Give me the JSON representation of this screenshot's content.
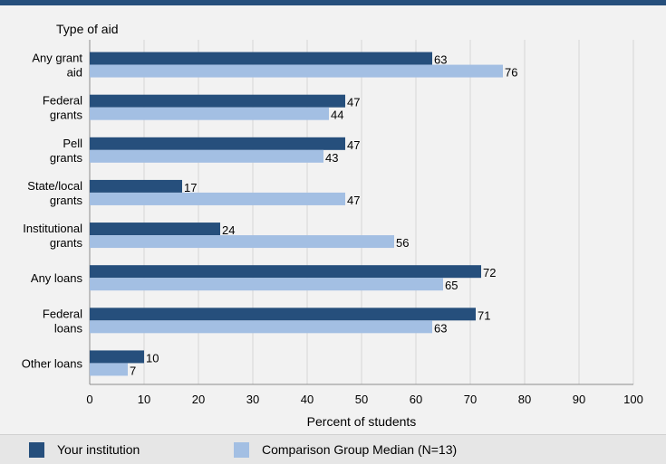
{
  "chart_data": {
    "type": "bar",
    "orientation": "horizontal",
    "yaxis_title": "Type of aid",
    "xlabel": "Percent of students",
    "xlim": [
      0,
      100
    ],
    "xticks": [
      0,
      10,
      20,
      30,
      40,
      50,
      60,
      70,
      80,
      90,
      100
    ],
    "grid": true,
    "legend_placement": "bottom",
    "categories": [
      [
        "Any grant",
        "aid"
      ],
      [
        "Federal",
        "grants"
      ],
      [
        "Pell",
        "grants"
      ],
      [
        "State/local",
        "grants"
      ],
      [
        "Institutional",
        "grants"
      ],
      [
        "Any loans"
      ],
      [
        "Federal",
        "loans"
      ],
      [
        "Other loans"
      ]
    ],
    "series": [
      {
        "name": "Your institution",
        "color": "#264f7c",
        "values": [
          63,
          47,
          47,
          17,
          24,
          72,
          71,
          10
        ]
      },
      {
        "name": "Comparison Group Median (N=13)",
        "color": "#a3bfe3",
        "values": [
          76,
          44,
          43,
          47,
          56,
          65,
          63,
          7
        ]
      }
    ]
  }
}
